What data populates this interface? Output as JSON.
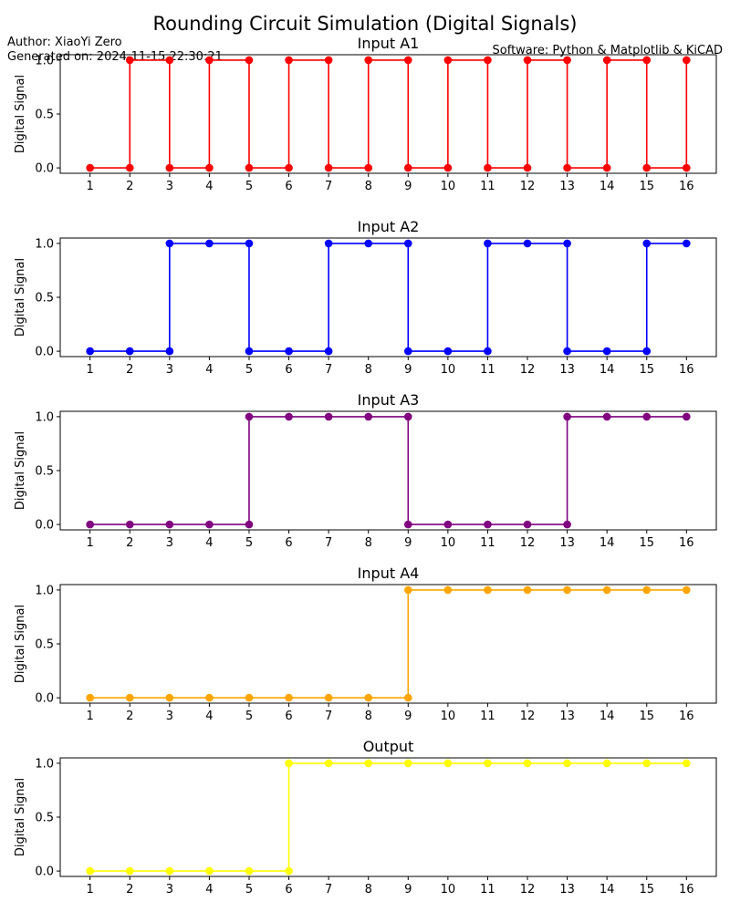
{
  "figure": {
    "title": "Rounding Circuit Simulation (Digital Signals)",
    "author": "Author: XiaoYi Zero",
    "generated": "Generated on: 2024-11-15 22:30:21",
    "software": "Software: Python & Matplotlib & KiCAD"
  },
  "chart_data": [
    {
      "type": "line",
      "step": "post",
      "title": "Input A1",
      "ylabel": "Digital Signal",
      "color": "#ff0000",
      "x": [
        1,
        2,
        3,
        4,
        5,
        6,
        7,
        8,
        9,
        10,
        11,
        12,
        13,
        14,
        15,
        16
      ],
      "values": [
        0,
        1,
        0,
        1,
        0,
        1,
        0,
        1,
        0,
        1,
        0,
        1,
        0,
        1,
        0,
        1
      ],
      "xlim": [
        0.25,
        16.75
      ],
      "ylim": [
        -0.05,
        1.05
      ],
      "yticks": [
        "0.0",
        "0.5",
        "1.0"
      ],
      "xticks": [
        "1",
        "2",
        "3",
        "4",
        "5",
        "6",
        "7",
        "8",
        "9",
        "10",
        "11",
        "12",
        "13",
        "14",
        "15",
        "16"
      ]
    },
    {
      "type": "line",
      "step": "post",
      "title": "Input A2",
      "ylabel": "Digital Signal",
      "color": "#0000ff",
      "x": [
        1,
        2,
        3,
        4,
        5,
        6,
        7,
        8,
        9,
        10,
        11,
        12,
        13,
        14,
        15,
        16
      ],
      "values": [
        0,
        0,
        1,
        1,
        0,
        0,
        1,
        1,
        0,
        0,
        1,
        1,
        0,
        0,
        1,
        1
      ],
      "xlim": [
        0.25,
        16.75
      ],
      "ylim": [
        -0.05,
        1.05
      ],
      "yticks": [
        "0.0",
        "0.5",
        "1.0"
      ],
      "xticks": [
        "1",
        "2",
        "3",
        "4",
        "5",
        "6",
        "7",
        "8",
        "9",
        "10",
        "11",
        "12",
        "13",
        "14",
        "15",
        "16"
      ]
    },
    {
      "type": "line",
      "step": "post",
      "title": "Input A3",
      "ylabel": "Digital Signal",
      "color": "#800080",
      "x": [
        1,
        2,
        3,
        4,
        5,
        6,
        7,
        8,
        9,
        10,
        11,
        12,
        13,
        14,
        15,
        16
      ],
      "values": [
        0,
        0,
        0,
        0,
        1,
        1,
        1,
        1,
        0,
        0,
        0,
        0,
        1,
        1,
        1,
        1
      ],
      "xlim": [
        0.25,
        16.75
      ],
      "ylim": [
        -0.05,
        1.05
      ],
      "yticks": [
        "0.0",
        "0.5",
        "1.0"
      ],
      "xticks": [
        "1",
        "2",
        "3",
        "4",
        "5",
        "6",
        "7",
        "8",
        "9",
        "10",
        "11",
        "12",
        "13",
        "14",
        "15",
        "16"
      ]
    },
    {
      "type": "line",
      "step": "post",
      "title": "Input A4",
      "ylabel": "Digital Signal",
      "color": "#ffa500",
      "x": [
        1,
        2,
        3,
        4,
        5,
        6,
        7,
        8,
        9,
        10,
        11,
        12,
        13,
        14,
        15,
        16
      ],
      "values": [
        0,
        0,
        0,
        0,
        0,
        0,
        0,
        0,
        1,
        1,
        1,
        1,
        1,
        1,
        1,
        1
      ],
      "xlim": [
        0.25,
        16.75
      ],
      "ylim": [
        -0.05,
        1.05
      ],
      "yticks": [
        "0.0",
        "0.5",
        "1.0"
      ],
      "xticks": [
        "1",
        "2",
        "3",
        "4",
        "5",
        "6",
        "7",
        "8",
        "9",
        "10",
        "11",
        "12",
        "13",
        "14",
        "15",
        "16"
      ]
    },
    {
      "type": "line",
      "step": "post",
      "title": "Output",
      "ylabel": "Digital Signal",
      "color": "#ffff00",
      "x": [
        1,
        2,
        3,
        4,
        5,
        6,
        7,
        8,
        9,
        10,
        11,
        12,
        13,
        14,
        15,
        16
      ],
      "values": [
        0,
        0,
        0,
        0,
        0,
        1,
        1,
        1,
        1,
        1,
        1,
        1,
        1,
        1,
        1,
        1
      ],
      "xlim": [
        0.25,
        16.75
      ],
      "ylim": [
        -0.05,
        1.05
      ],
      "yticks": [
        "0.0",
        "0.5",
        "1.0"
      ],
      "xticks": [
        "1",
        "2",
        "3",
        "4",
        "5",
        "6",
        "7",
        "8",
        "9",
        "10",
        "11",
        "12",
        "13",
        "14",
        "15",
        "16"
      ]
    }
  ]
}
